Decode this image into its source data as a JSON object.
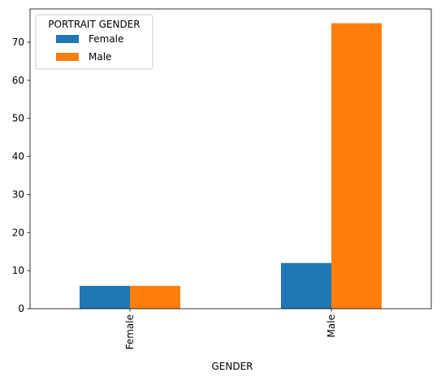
{
  "chart_data": {
    "type": "bar",
    "categories": [
      "Female",
      "Male"
    ],
    "series": [
      {
        "name": "Female",
        "values": [
          6,
          12
        ],
        "color": "#1f77b4"
      },
      {
        "name": "Male",
        "values": [
          6,
          75
        ],
        "color": "#ff7f0e"
      }
    ],
    "xlabel": "GENDER",
    "ylabel": "",
    "ylim": [
      0,
      78.75
    ],
    "yticks": [
      0,
      10,
      20,
      30,
      40,
      50,
      60,
      70
    ],
    "legend": {
      "title": "PORTRAIT GENDER",
      "placement": "top-left"
    },
    "grid": false
  }
}
